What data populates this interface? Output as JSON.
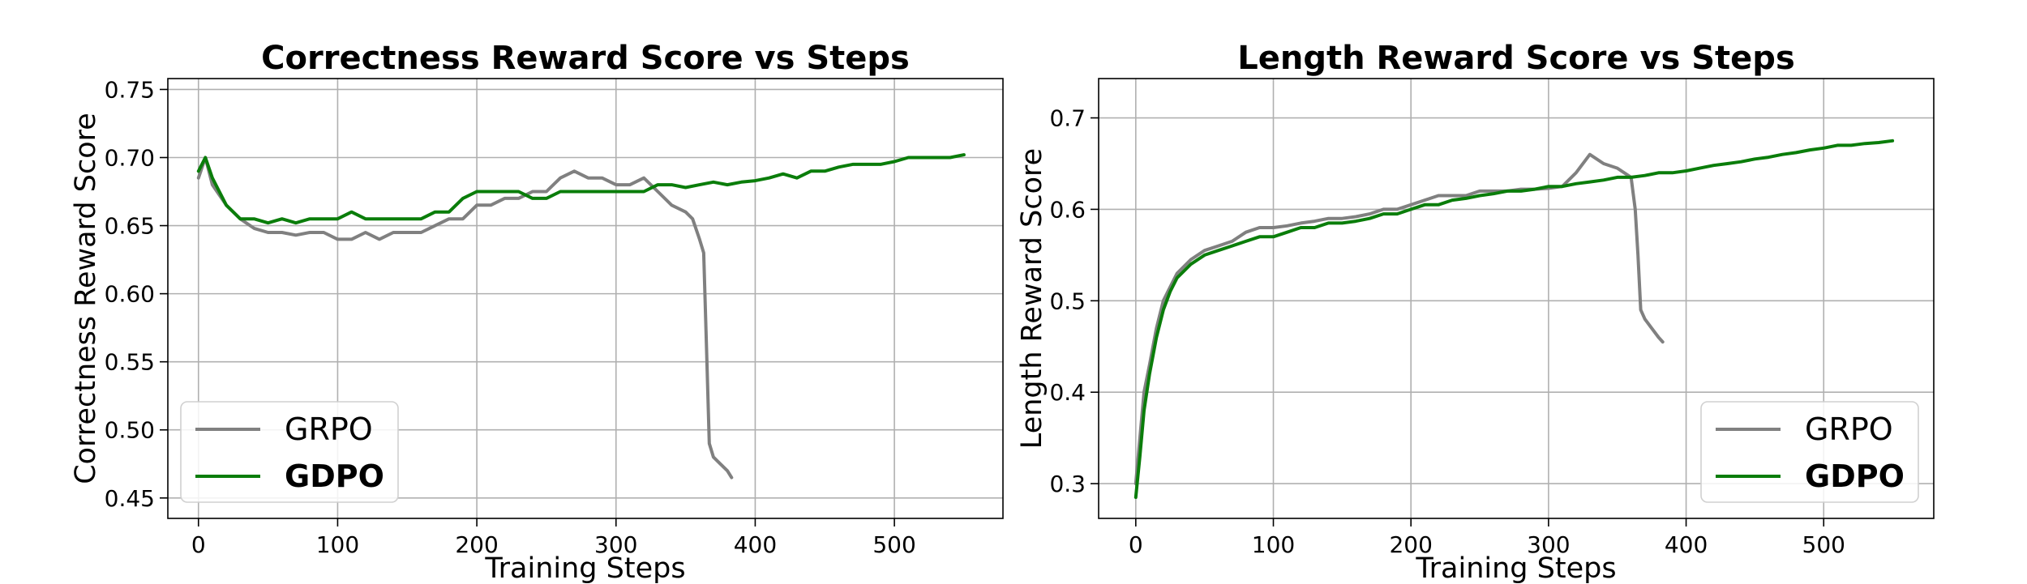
{
  "colors": {
    "grpo": "#808080",
    "gdpo": "#0a7d0a"
  },
  "chart_data": [
    {
      "type": "line",
      "title": "Correctness Reward Score vs Steps",
      "xlabel": "Training Steps",
      "ylabel": "Correctness Reward Score",
      "xlim": [
        -22,
        578
      ],
      "ylim": [
        0.435,
        0.758
      ],
      "xticks": [
        0,
        100,
        200,
        300,
        400,
        500
      ],
      "xtick_labels": [
        "0",
        "100",
        "200",
        "300",
        "400",
        "500"
      ],
      "yticks": [
        0.45,
        0.5,
        0.55,
        0.6,
        0.65,
        0.7,
        0.75
      ],
      "ytick_labels": [
        "0.45",
        "0.50",
        "0.55",
        "0.60",
        "0.65",
        "0.70",
        "0.75"
      ],
      "grid": true,
      "legend": "bottom-left",
      "series": [
        {
          "name": "GRPO",
          "x": [
            0,
            5,
            10,
            20,
            30,
            40,
            50,
            60,
            70,
            80,
            90,
            100,
            110,
            120,
            130,
            140,
            150,
            160,
            170,
            180,
            190,
            200,
            210,
            220,
            230,
            240,
            250,
            260,
            270,
            280,
            290,
            300,
            310,
            320,
            330,
            340,
            350,
            355,
            360,
            363,
            365,
            367,
            370,
            375,
            380,
            383
          ],
          "y": [
            0.685,
            0.7,
            0.68,
            0.665,
            0.655,
            0.648,
            0.645,
            0.645,
            0.643,
            0.645,
            0.645,
            0.64,
            0.64,
            0.645,
            0.64,
            0.645,
            0.645,
            0.645,
            0.65,
            0.655,
            0.655,
            0.665,
            0.665,
            0.67,
            0.67,
            0.675,
            0.675,
            0.685,
            0.69,
            0.685,
            0.685,
            0.68,
            0.68,
            0.685,
            0.675,
            0.665,
            0.66,
            0.655,
            0.64,
            0.63,
            0.56,
            0.49,
            0.48,
            0.475,
            0.47,
            0.465
          ]
        },
        {
          "name": "GDPO",
          "x": [
            0,
            5,
            10,
            20,
            30,
            40,
            50,
            60,
            70,
            80,
            90,
            100,
            110,
            120,
            130,
            140,
            150,
            160,
            170,
            180,
            190,
            200,
            210,
            220,
            230,
            240,
            250,
            260,
            270,
            280,
            290,
            300,
            310,
            320,
            330,
            340,
            350,
            360,
            370,
            380,
            390,
            400,
            410,
            420,
            430,
            440,
            450,
            460,
            470,
            480,
            490,
            500,
            510,
            520,
            530,
            540,
            550
          ],
          "y": [
            0.69,
            0.7,
            0.685,
            0.665,
            0.655,
            0.655,
            0.652,
            0.655,
            0.652,
            0.655,
            0.655,
            0.655,
            0.66,
            0.655,
            0.655,
            0.655,
            0.655,
            0.655,
            0.66,
            0.66,
            0.67,
            0.675,
            0.675,
            0.675,
            0.675,
            0.67,
            0.67,
            0.675,
            0.675,
            0.675,
            0.675,
            0.675,
            0.675,
            0.675,
            0.68,
            0.68,
            0.678,
            0.68,
            0.682,
            0.68,
            0.682,
            0.683,
            0.685,
            0.688,
            0.685,
            0.69,
            0.69,
            0.693,
            0.695,
            0.695,
            0.695,
            0.697,
            0.7,
            0.7,
            0.7,
            0.7,
            0.702
          ]
        }
      ]
    },
    {
      "type": "line",
      "title": "Length Reward Score vs Steps",
      "xlabel": "Training Steps",
      "ylabel": "Length Reward Score",
      "xlim": [
        -27,
        580
      ],
      "ylim": [
        0.262,
        0.743
      ],
      "xticks": [
        0,
        100,
        200,
        300,
        400,
        500
      ],
      "xtick_labels": [
        "0",
        "100",
        "200",
        "300",
        "400",
        "500"
      ],
      "yticks": [
        0.3,
        0.4,
        0.5,
        0.6,
        0.7
      ],
      "ytick_labels": [
        "0.3",
        "0.4",
        "0.5",
        "0.6",
        "0.7"
      ],
      "grid": true,
      "legend": "bottom-right",
      "series": [
        {
          "name": "GRPO",
          "x": [
            0,
            3,
            6,
            10,
            15,
            20,
            25,
            30,
            40,
            50,
            60,
            70,
            80,
            90,
            100,
            110,
            120,
            130,
            140,
            150,
            160,
            170,
            180,
            190,
            200,
            210,
            220,
            230,
            240,
            250,
            260,
            270,
            280,
            290,
            300,
            310,
            320,
            330,
            340,
            350,
            355,
            360,
            363,
            365,
            367,
            370,
            375,
            380,
            383
          ],
          "y": [
            0.3,
            0.35,
            0.4,
            0.43,
            0.47,
            0.5,
            0.515,
            0.53,
            0.545,
            0.555,
            0.56,
            0.565,
            0.575,
            0.58,
            0.58,
            0.582,
            0.585,
            0.587,
            0.59,
            0.59,
            0.592,
            0.595,
            0.6,
            0.6,
            0.605,
            0.61,
            0.615,
            0.615,
            0.615,
            0.62,
            0.62,
            0.62,
            0.622,
            0.622,
            0.623,
            0.625,
            0.64,
            0.66,
            0.65,
            0.645,
            0.64,
            0.635,
            0.6,
            0.55,
            0.49,
            0.48,
            0.47,
            0.46,
            0.455
          ]
        },
        {
          "name": "GDPO",
          "x": [
            0,
            3,
            6,
            10,
            15,
            20,
            25,
            30,
            40,
            50,
            60,
            70,
            80,
            90,
            100,
            110,
            120,
            130,
            140,
            150,
            160,
            170,
            180,
            190,
            200,
            210,
            220,
            230,
            240,
            250,
            260,
            270,
            280,
            290,
            300,
            310,
            320,
            330,
            340,
            350,
            360,
            370,
            380,
            390,
            400,
            410,
            420,
            430,
            440,
            450,
            460,
            470,
            480,
            490,
            500,
            510,
            520,
            530,
            540,
            550
          ],
          "y": [
            0.285,
            0.33,
            0.38,
            0.42,
            0.46,
            0.49,
            0.51,
            0.525,
            0.54,
            0.55,
            0.555,
            0.56,
            0.565,
            0.57,
            0.57,
            0.575,
            0.58,
            0.58,
            0.585,
            0.585,
            0.587,
            0.59,
            0.595,
            0.595,
            0.6,
            0.605,
            0.605,
            0.61,
            0.612,
            0.615,
            0.617,
            0.62,
            0.62,
            0.622,
            0.625,
            0.625,
            0.628,
            0.63,
            0.632,
            0.635,
            0.635,
            0.637,
            0.64,
            0.64,
            0.642,
            0.645,
            0.648,
            0.65,
            0.652,
            0.655,
            0.657,
            0.66,
            0.662,
            0.665,
            0.667,
            0.67,
            0.67,
            0.672,
            0.673,
            0.675
          ]
        }
      ]
    }
  ]
}
